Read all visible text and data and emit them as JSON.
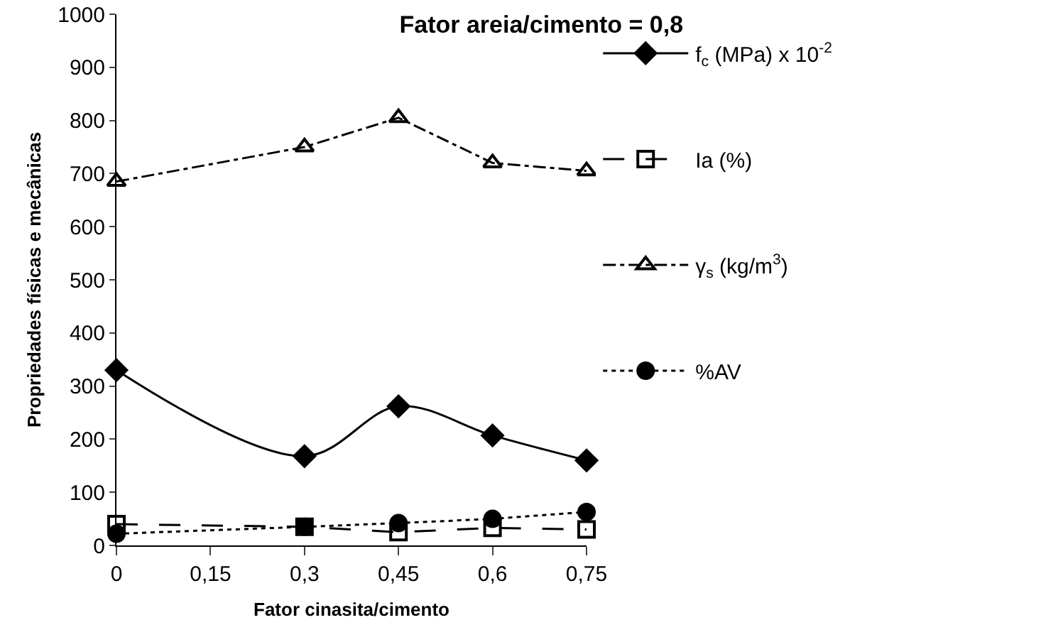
{
  "chart_data": {
    "type": "line",
    "title": "Fator areia/cimento = 0,8",
    "xlabel": "Fator cinasita/cimento",
    "ylabel": "Propriedades físicas e mecânicas",
    "x": [
      0,
      0.3,
      0.45,
      0.6,
      0.75
    ],
    "xlim": [
      0,
      0.75
    ],
    "xticks": [
      0,
      {
        "value": 0.15,
        "label": "0,15"
      },
      {
        "value": 0.3,
        "label": "0,3"
      },
      {
        "value": 0.45,
        "label": "0,45"
      },
      {
        "value": 0.6,
        "label": "0,6"
      },
      {
        "value": 0.75,
        "label": "0,75"
      }
    ],
    "ylim": [
      0,
      1000
    ],
    "yticks": [
      0,
      100,
      200,
      300,
      400,
      500,
      600,
      700,
      800,
      900,
      1000
    ],
    "grid": false,
    "legend": "right",
    "series": [
      {
        "name": "f$_{c}$ (MPa) x 10$^{-2}$",
        "color": "#000000",
        "marker": "diamond",
        "line_style": "solid",
        "values": [
          330,
          168,
          262,
          207,
          160
        ]
      },
      {
        "name": "Ia (%)",
        "color": "#000000",
        "marker": "square",
        "line_style": "dashed",
        "values": [
          40,
          35,
          25,
          33,
          30
        ]
      },
      {
        "name": "γ$_{s}$ (kg/m$^{3}$)",
        "color": "#000000",
        "marker": "triangle",
        "line_style": "dashdot",
        "values": [
          685,
          750,
          805,
          720,
          705
        ]
      },
      {
        "name": "%AV",
        "color": "#000000",
        "marker": "circle",
        "line_style": "dotted",
        "values": [
          22,
          35,
          42,
          50,
          63
        ]
      }
    ]
  }
}
